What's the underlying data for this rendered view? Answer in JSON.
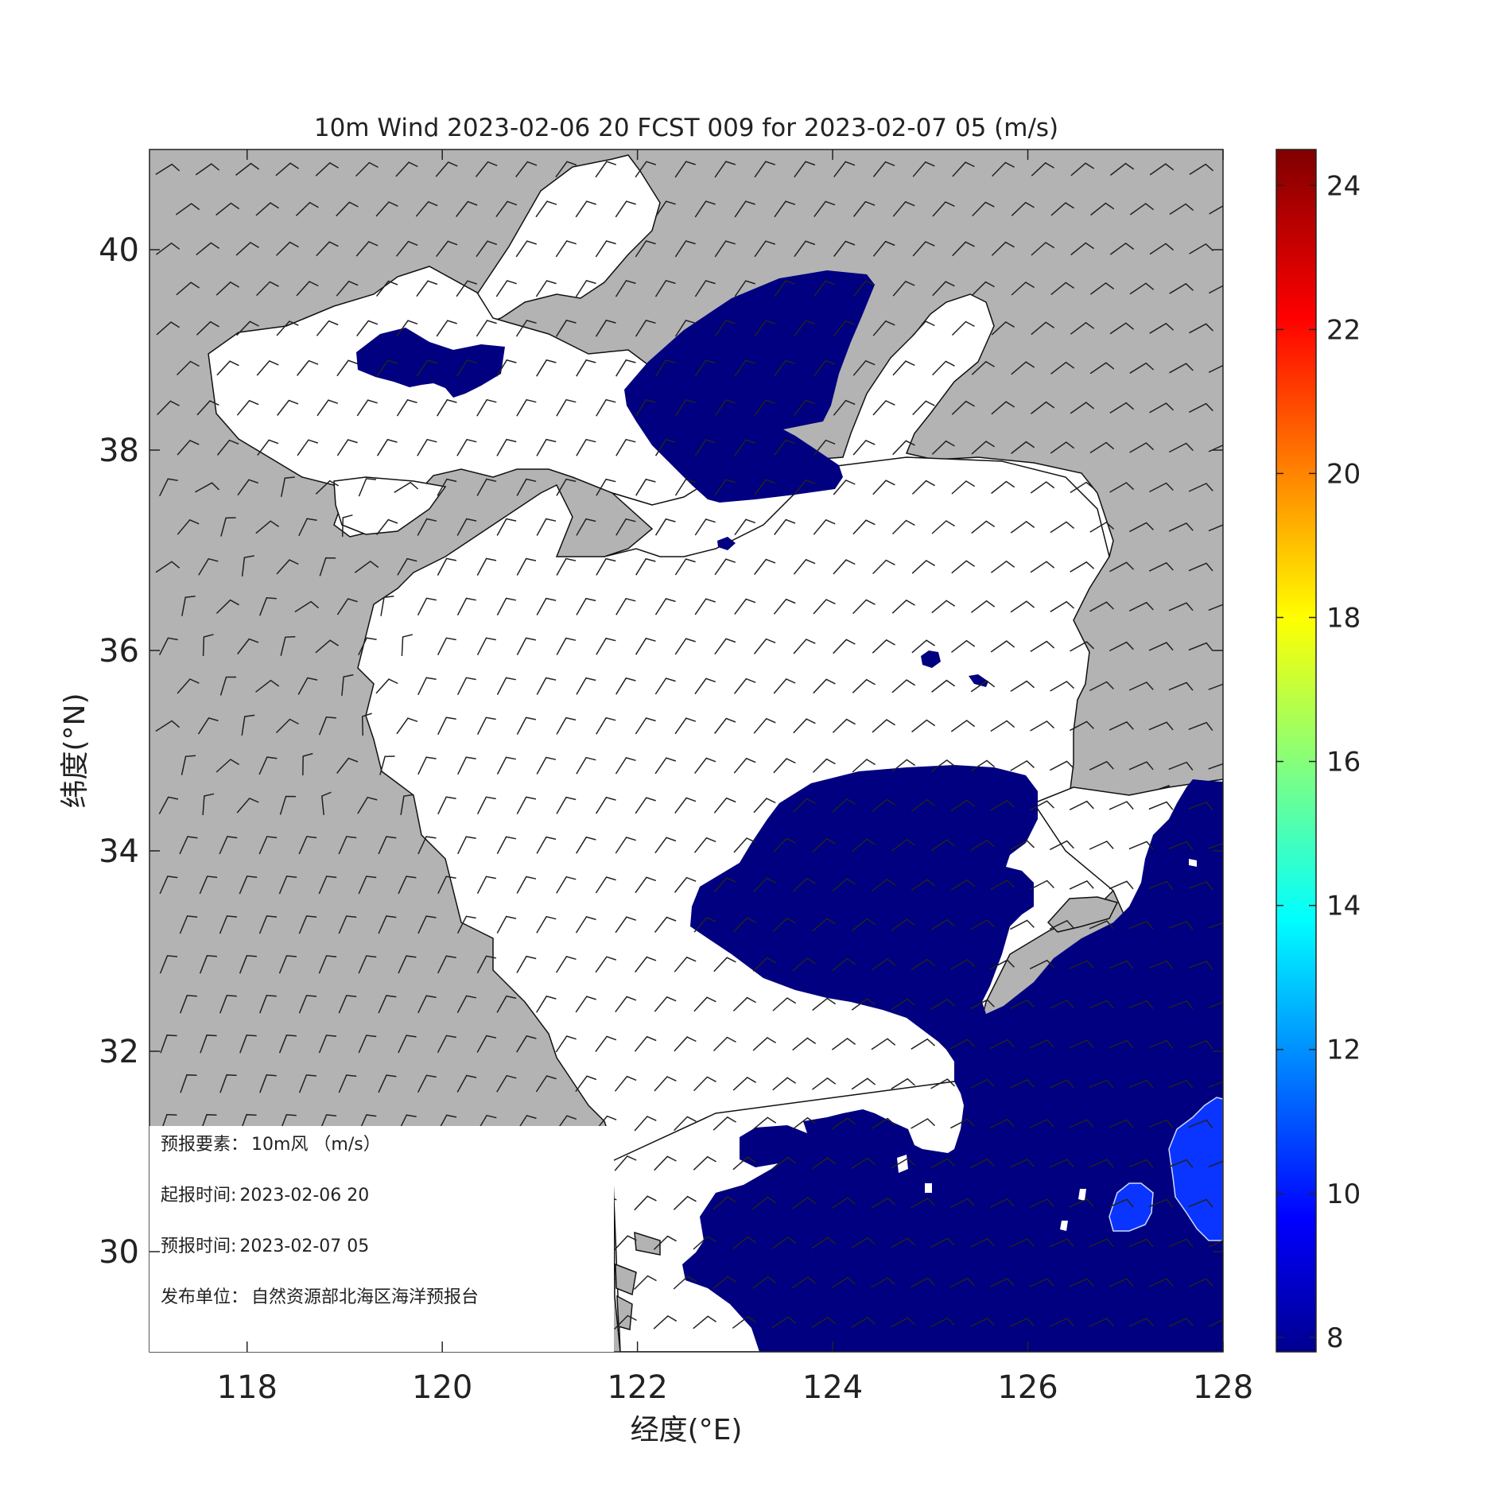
{
  "figure": {
    "title": "10m Wind 2023-02-06 20 FCST 009 for 2023-02-07 05 (m/s)",
    "xlabel": "经度(°E)",
    "ylabel": "纬度(°N)"
  },
  "axes": {
    "x_range": [
      117,
      128
    ],
    "y_range": [
      29,
      41
    ],
    "x_ticks": [
      {
        "value": 118,
        "label": "118"
      },
      {
        "value": 120,
        "label": "120"
      },
      {
        "value": 122,
        "label": "122"
      },
      {
        "value": 124,
        "label": "124"
      },
      {
        "value": 126,
        "label": "126"
      },
      {
        "value": 128,
        "label": "128"
      }
    ],
    "y_ticks": [
      {
        "value": 30,
        "label": "30"
      },
      {
        "value": 32,
        "label": "32"
      },
      {
        "value": 34,
        "label": "34"
      },
      {
        "value": 36,
        "label": "36"
      },
      {
        "value": 38,
        "label": "38"
      },
      {
        "value": 40,
        "label": "40"
      }
    ]
  },
  "colorbar": {
    "range": [
      7.8,
      24.5
    ],
    "ticks": [
      {
        "value": 8,
        "label": "8"
      },
      {
        "value": 10,
        "label": "10"
      },
      {
        "value": 12,
        "label": "12"
      },
      {
        "value": 14,
        "label": "14"
      },
      {
        "value": 16,
        "label": "16"
      },
      {
        "value": 18,
        "label": "18"
      },
      {
        "value": 20,
        "label": "20"
      },
      {
        "value": 22,
        "label": "22"
      },
      {
        "value": 24,
        "label": "24"
      }
    ],
    "colormap": "jet"
  },
  "colors": {
    "land": "#b3b3b3",
    "sea": "#ffffff",
    "wind_8_10": "#000080",
    "wind_10_12": "#0a34ff",
    "barb": "#222222"
  },
  "info_box": {
    "lines": [
      {
        "label": "预报要素：",
        "value": "10m风 （m/s）"
      },
      {
        "label": "起报时间:",
        "value": "2023-02-06 20"
      },
      {
        "label": "预报时间:",
        "value": "2023-02-07 05"
      },
      {
        "label": "发布单位：",
        "value": "自然资源部北海区海洋预报台"
      }
    ]
  }
}
